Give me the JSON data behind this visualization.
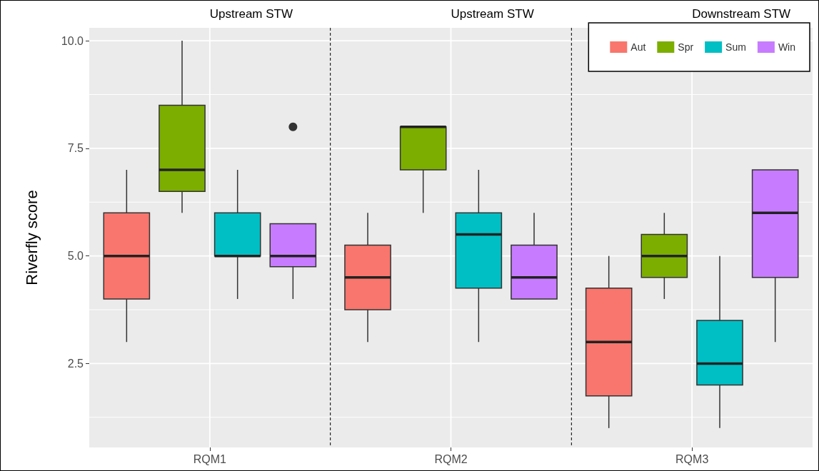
{
  "chart_data": {
    "type": "box",
    "ylabel": "Riverfly score",
    "categories": [
      "RQM1",
      "RQM2",
      "RQM3"
    ],
    "annotations": [
      "Upstream STW",
      "Upstream STW",
      "Downstream STW"
    ],
    "ylim": [
      0.55,
      10.3
    ],
    "yticks": [
      {
        "value": 1.25,
        "label": null
      },
      {
        "value": 2.5,
        "label": "2.5"
      },
      {
        "value": 3.75,
        "label": null
      },
      {
        "value": 5,
        "label": "5.0"
      },
      {
        "value": 6.25,
        "label": null
      },
      {
        "value": 7.5,
        "label": "7.5"
      },
      {
        "value": 8.75,
        "label": null
      },
      {
        "value": 10,
        "label": "10.0"
      }
    ],
    "grid": true,
    "legend": "top right",
    "series": [
      {
        "name": "Aut",
        "color": "#f8766d",
        "boxes": [
          {
            "low": 3,
            "q1": 4,
            "median": 5,
            "q3": 6,
            "high": 7
          },
          {
            "low": 3,
            "q1": 3.75,
            "median": 4.5,
            "q3": 5.25,
            "high": 6
          },
          {
            "low": 1,
            "q1": 1.75,
            "median": 3,
            "q3": 4.25,
            "high": 5
          }
        ]
      },
      {
        "name": "Spr",
        "color": "#7cae00",
        "boxes": [
          {
            "low": 6,
            "q1": 6.5,
            "median": 7,
            "q3": 8.5,
            "high": 10
          },
          {
            "low": 6,
            "q1": 7,
            "median": 8,
            "q3": 8,
            "high": 8
          },
          {
            "low": 4,
            "q1": 4.5,
            "median": 5,
            "q3": 5.5,
            "high": 6
          }
        ]
      },
      {
        "name": "Sum",
        "color": "#00bfc4",
        "boxes": [
          {
            "low": 4,
            "q1": 5,
            "median": 5,
            "q3": 6,
            "high": 7
          },
          {
            "low": 3,
            "q1": 4.25,
            "median": 5.5,
            "q3": 6,
            "high": 7
          },
          {
            "low": 1,
            "q1": 2,
            "median": 2.5,
            "q3": 3.5,
            "high": 5
          }
        ]
      },
      {
        "name": "Win",
        "color": "#c77cff",
        "boxes": [
          {
            "low": 4,
            "q1": 4.75,
            "median": 5,
            "q3": 5.75,
            "high": 5.75,
            "outliers": [
              8
            ]
          },
          {
            "low": 4,
            "q1": 4,
            "median": 4.5,
            "q3": 5.25,
            "high": 6
          },
          {
            "low": 3,
            "q1": 4.5,
            "median": 6,
            "q3": 7,
            "high": 7
          }
        ]
      }
    ]
  }
}
